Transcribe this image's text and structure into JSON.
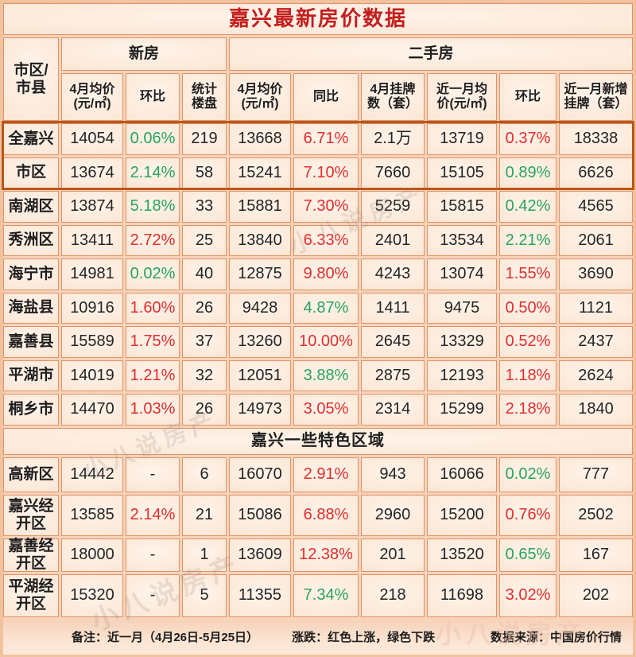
{
  "chart_data": {
    "type": "table",
    "title": "嘉兴最新房价数据",
    "region_header": [
      "市区/",
      "市县"
    ],
    "column_groups": {
      "new_homes": "新房",
      "second_hand": "二手房"
    },
    "columns": [
      [
        "4月均价",
        "(元/㎡)"
      ],
      [
        "环比"
      ],
      [
        "统计",
        "楼盘"
      ],
      [
        "4月均价",
        "(元/㎡)"
      ],
      [
        "同比"
      ],
      [
        "4月挂牌",
        "数（套）"
      ],
      [
        "近一月均",
        "价(元/㎡)"
      ],
      [
        "环比"
      ],
      [
        "近一月新增",
        "挂牌（套）"
      ]
    ],
    "main_rows": [
      {
        "name": "全嘉兴",
        "values": [
          "14054",
          "0.06%",
          "219",
          "13668",
          "6.71%",
          "2.1万",
          "13719",
          "0.37%",
          "18338"
        ],
        "colors": [
          "dark",
          "green",
          "dark",
          "dark",
          "red",
          "dark",
          "dark",
          "red",
          "dark"
        ]
      },
      {
        "name": "市区",
        "values": [
          "13674",
          "2.14%",
          "58",
          "15241",
          "7.10%",
          "7660",
          "15105",
          "0.89%",
          "6626"
        ],
        "colors": [
          "dark",
          "green",
          "dark",
          "dark",
          "red",
          "dark",
          "dark",
          "green",
          "dark"
        ]
      },
      {
        "name": "南湖区",
        "values": [
          "13874",
          "5.18%",
          "33",
          "15881",
          "7.30%",
          "5259",
          "15815",
          "0.42%",
          "4565"
        ],
        "colors": [
          "dark",
          "green",
          "dark",
          "dark",
          "red",
          "dark",
          "dark",
          "green",
          "dark"
        ]
      },
      {
        "name": "秀洲区",
        "values": [
          "13411",
          "2.72%",
          "25",
          "13840",
          "6.33%",
          "2401",
          "13534",
          "2.21%",
          "2061"
        ],
        "colors": [
          "dark",
          "red",
          "dark",
          "dark",
          "red",
          "dark",
          "dark",
          "green",
          "dark"
        ]
      },
      {
        "name": "海宁市",
        "values": [
          "14981",
          "0.02%",
          "40",
          "12875",
          "9.80%",
          "4243",
          "13074",
          "1.55%",
          "3690"
        ],
        "colors": [
          "dark",
          "green",
          "dark",
          "dark",
          "red",
          "dark",
          "dark",
          "red",
          "dark"
        ]
      },
      {
        "name": "海盐县",
        "values": [
          "10916",
          "1.60%",
          "26",
          "9428",
          "4.87%",
          "1411",
          "9475",
          "0.50%",
          "1121"
        ],
        "colors": [
          "dark",
          "red",
          "dark",
          "dark",
          "green",
          "dark",
          "dark",
          "red",
          "dark"
        ]
      },
      {
        "name": "嘉善县",
        "values": [
          "15589",
          "1.75%",
          "37",
          "13260",
          "10.00%",
          "2645",
          "13329",
          "0.52%",
          "2437"
        ],
        "colors": [
          "dark",
          "red",
          "dark",
          "dark",
          "red",
          "dark",
          "dark",
          "red",
          "dark"
        ]
      },
      {
        "name": "平湖市",
        "values": [
          "14019",
          "1.21%",
          "32",
          "12051",
          "3.88%",
          "2875",
          "12193",
          "1.18%",
          "2624"
        ],
        "colors": [
          "dark",
          "red",
          "dark",
          "dark",
          "green",
          "dark",
          "dark",
          "red",
          "dark"
        ]
      },
      {
        "name": "桐乡市",
        "values": [
          "14470",
          "1.03%",
          "26",
          "14973",
          "3.05%",
          "2314",
          "15299",
          "2.18%",
          "1840"
        ],
        "colors": [
          "dark",
          "red",
          "dark",
          "dark",
          "red",
          "dark",
          "dark",
          "red",
          "dark"
        ]
      }
    ],
    "section_title": "嘉兴一些特色区域",
    "special_rows": [
      {
        "name": "高新区",
        "values": [
          "14442",
          "-",
          "6",
          "16070",
          "2.91%",
          "943",
          "16066",
          "0.02%",
          "777"
        ],
        "colors": [
          "dark",
          "dark",
          "dark",
          "dark",
          "red",
          "dark",
          "dark",
          "green",
          "dark"
        ]
      },
      {
        "name": "嘉兴经开区",
        "values": [
          "13585",
          "2.14%",
          "21",
          "15086",
          "6.88%",
          "2960",
          "15200",
          "0.76%",
          "2502"
        ],
        "colors": [
          "dark",
          "red",
          "dark",
          "dark",
          "red",
          "dark",
          "dark",
          "red",
          "dark"
        ]
      },
      {
        "name": "嘉善经开区",
        "values": [
          "18000",
          "-",
          "1",
          "13609",
          "12.38%",
          "201",
          "13520",
          "0.65%",
          "167"
        ],
        "colors": [
          "dark",
          "dark",
          "dark",
          "dark",
          "red",
          "dark",
          "dark",
          "green",
          "dark"
        ]
      },
      {
        "name": "平湖经开区",
        "values": [
          "15320",
          "-",
          "5",
          "11355",
          "7.34%",
          "218",
          "11698",
          "3.02%",
          "202"
        ],
        "colors": [
          "dark",
          "dark",
          "dark",
          "dark",
          "green",
          "dark",
          "dark",
          "red",
          "dark"
        ]
      }
    ],
    "footer": {
      "note": "备注：近一月（4月26日-5月25日）",
      "legend": "涨跌：红色上涨，绿色下跌",
      "source": "数据来源：中国房价行情"
    },
    "legend_colors": {
      "up": "#e22d2d",
      "down": "#29a25e",
      "title": "#c41e1e"
    },
    "watermark": "小八说房产"
  }
}
